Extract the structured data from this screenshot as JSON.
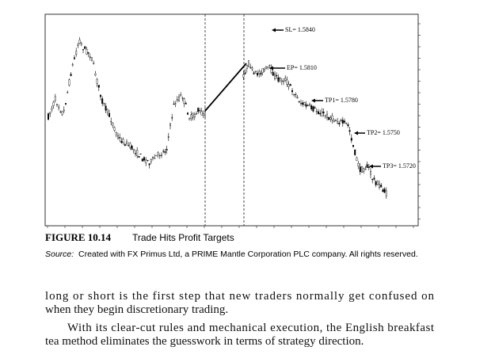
{
  "figure": {
    "annotations": [
      "SL= 1.5840",
      "EP= 1.5810",
      "TP1= 1.5780",
      "TP2= 1.5750",
      "TP3= 1.5720"
    ],
    "label": "FIGURE 10.14",
    "title": "Trade Hits Profit Targets",
    "source": {
      "prefix": "Source:",
      "text": "Created with FX Primus Ltd, a PRIME Mantle Corporation PLC company. All rights reserved."
    }
  },
  "body": {
    "lines": [
      "long or short is the first step that new traders normally get confused on",
      "when they begin discretionary trading.",
      "With its clear-cut rules and mechanical execution, the English breakfast",
      "tea method eliminates the guesswork in terms of strategy direction."
    ]
  }
}
